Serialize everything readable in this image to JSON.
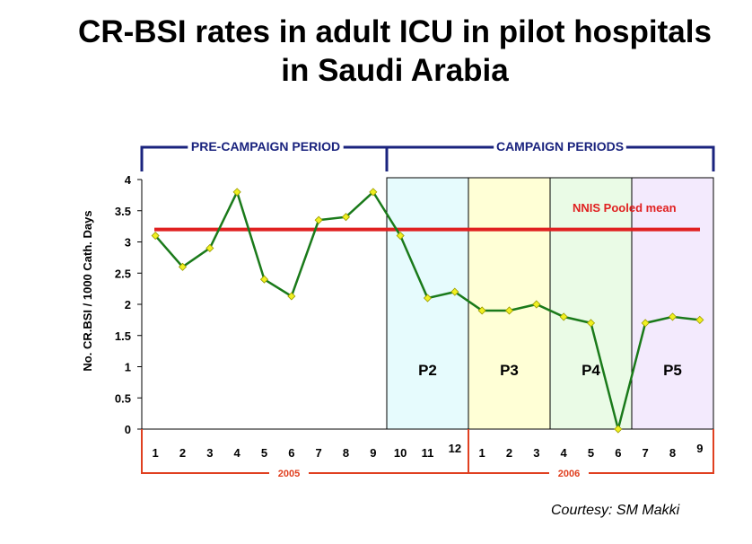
{
  "title": {
    "line1": "CR-BSI rates in adult ICU in pilot hospitals",
    "line2": "in Saudi Arabia"
  },
  "courtesy": "Courtesy: SM Makki",
  "colors": {
    "series": "#1a7a1a",
    "marker": "#f0f020",
    "reference": "#e02020",
    "bracket_top": "#1a237e",
    "bracket_bottom": "#e04020",
    "periods": [
      "#e6fbfd",
      "#ffffd6",
      "#eafbe6",
      "#f3eafd"
    ]
  },
  "chart_data": {
    "type": "line",
    "ylabel": "No. CR.BSI / 1000 Cath. Days",
    "ylim": [
      0,
      4
    ],
    "yticks": [
      "0",
      "0.5",
      "1",
      "1.5",
      "2",
      "2.5",
      "3",
      "3.5",
      "4"
    ],
    "x": [
      "1",
      "2",
      "3",
      "4",
      "5",
      "6",
      "7",
      "8",
      "9",
      "10",
      "11",
      "12",
      "1",
      "2",
      "3",
      "4",
      "5",
      "6",
      "7",
      "8",
      "9"
    ],
    "series": [
      {
        "values": [
          3.1,
          2.6,
          2.9,
          3.8,
          2.4,
          2.13,
          3.35,
          3.4,
          3.8,
          3.1,
          2.1,
          2.2,
          1.9,
          1.9,
          2.0,
          1.8,
          1.7,
          0.0,
          1.7,
          1.8,
          1.75
        ]
      }
    ],
    "reference_line": {
      "name": "NNIS Pooled mean",
      "value": 3.2
    },
    "top_brackets": [
      "PRE-CAMPAIGN PERIOD",
      "CAMPAIGN PERIODS"
    ],
    "periods": [
      {
        "name": "P2",
        "from_index": 9,
        "to_index": 11
      },
      {
        "name": "P3",
        "from_index": 12,
        "to_index": 14
      },
      {
        "name": "P4",
        "from_index": 15,
        "to_index": 17
      },
      {
        "name": "P5",
        "from_index": 18,
        "to_index": 20
      }
    ],
    "year_groups": [
      {
        "label": "2005",
        "from_index": 0,
        "to_index": 11
      },
      {
        "label": "2006",
        "from_index": 12,
        "to_index": 20
      }
    ],
    "grid": false,
    "legend": "none"
  }
}
